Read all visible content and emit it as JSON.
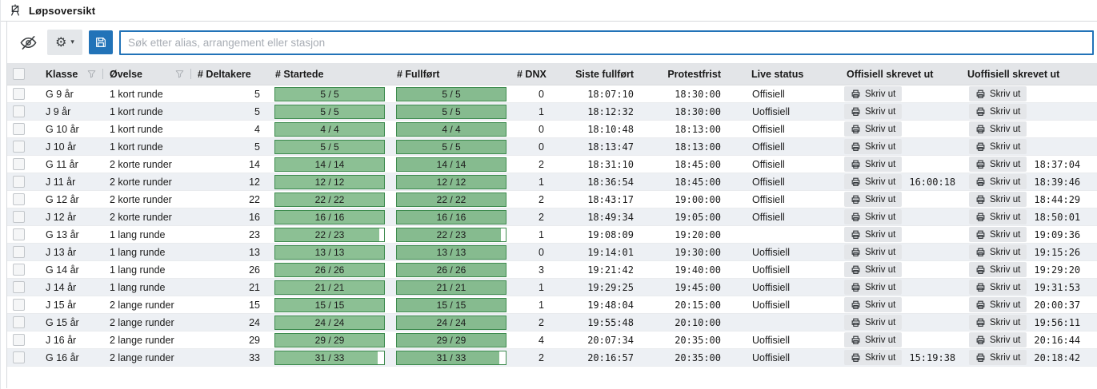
{
  "window": {
    "title": "Løpsoversikt"
  },
  "toolbar": {
    "search": {
      "placeholder": "Søk etter alias, arrangement eller stasjon",
      "value": ""
    },
    "accent_blue": "#2273b8"
  },
  "table": {
    "columns": {
      "klasse": "Klasse",
      "ovelse": "Øvelse",
      "deltakere": "# Deltakere",
      "startede": "# Startede",
      "fullfort": "# Fullført",
      "dnx": "# DNX",
      "siste_fullfort": "Siste fullført",
      "protestfrist": "Protestfrist",
      "live_status": "Live status",
      "offisiell_skrevet_ut": "Offisiell skrevet ut",
      "uoffisiell_skrevet_ut": "Uoffisiell skrevet ut"
    },
    "print_button_label": "Skriv ut",
    "bar_colors": {
      "startede_fill": "#8cc094",
      "fullfort_fill": "#86bb8f",
      "border": "#3d8b4e"
    },
    "rows": [
      {
        "klasse": "G 9 år",
        "ovelse": "1 kort runde",
        "deltakere": 5,
        "startede": "5 / 5",
        "startede_pct": 100,
        "fullfort": "5 / 5",
        "fullfort_pct": 100,
        "dnx": 0,
        "siste_fullfort": "18:07:10",
        "protestfrist": "18:30:00",
        "live_status": "Offisiell",
        "offisiell_tid": "",
        "uoffisiell_tid": ""
      },
      {
        "klasse": "J 9 år",
        "ovelse": "1 kort runde",
        "deltakere": 5,
        "startede": "5 / 5",
        "startede_pct": 100,
        "fullfort": "5 / 5",
        "fullfort_pct": 100,
        "dnx": 1,
        "siste_fullfort": "18:12:32",
        "protestfrist": "18:30:00",
        "live_status": "Uoffisiell",
        "offisiell_tid": "",
        "uoffisiell_tid": ""
      },
      {
        "klasse": "G 10 år",
        "ovelse": "1 kort runde",
        "deltakere": 4,
        "startede": "4 / 4",
        "startede_pct": 100,
        "fullfort": "4 / 4",
        "fullfort_pct": 100,
        "dnx": 0,
        "siste_fullfort": "18:10:48",
        "protestfrist": "18:13:00",
        "live_status": "Offisiell",
        "offisiell_tid": "",
        "uoffisiell_tid": ""
      },
      {
        "klasse": "J 10 år",
        "ovelse": "1 kort runde",
        "deltakere": 5,
        "startede": "5 / 5",
        "startede_pct": 100,
        "fullfort": "5 / 5",
        "fullfort_pct": 100,
        "dnx": 0,
        "siste_fullfort": "18:13:47",
        "protestfrist": "18:13:00",
        "live_status": "Offisiell",
        "offisiell_tid": "",
        "uoffisiell_tid": ""
      },
      {
        "klasse": "G 11 år",
        "ovelse": "2 korte runder",
        "deltakere": 14,
        "startede": "14 / 14",
        "startede_pct": 100,
        "fullfort": "14 / 14",
        "fullfort_pct": 100,
        "dnx": 2,
        "siste_fullfort": "18:31:10",
        "protestfrist": "18:45:00",
        "live_status": "Offisiell",
        "offisiell_tid": "",
        "uoffisiell_tid": "18:37:04"
      },
      {
        "klasse": "J 11 år",
        "ovelse": "2 korte runder",
        "deltakere": 12,
        "startede": "12 / 12",
        "startede_pct": 100,
        "fullfort": "12 / 12",
        "fullfort_pct": 100,
        "dnx": 1,
        "siste_fullfort": "18:36:54",
        "protestfrist": "18:45:00",
        "live_status": "Offisiell",
        "offisiell_tid": "16:00:18",
        "uoffisiell_tid": "18:39:46"
      },
      {
        "klasse": "G 12 år",
        "ovelse": "2 korte runder",
        "deltakere": 22,
        "startede": "22 / 22",
        "startede_pct": 100,
        "fullfort": "22 / 22",
        "fullfort_pct": 100,
        "dnx": 2,
        "siste_fullfort": "18:43:17",
        "protestfrist": "19:00:00",
        "live_status": "Offisiell",
        "offisiell_tid": "",
        "uoffisiell_tid": "18:44:29"
      },
      {
        "klasse": "J 12 år",
        "ovelse": "2 korte runder",
        "deltakere": 16,
        "startede": "16 / 16",
        "startede_pct": 100,
        "fullfort": "16 / 16",
        "fullfort_pct": 100,
        "dnx": 2,
        "siste_fullfort": "18:49:34",
        "protestfrist": "19:05:00",
        "live_status": "Offisiell",
        "offisiell_tid": "",
        "uoffisiell_tid": "18:50:01"
      },
      {
        "klasse": "G 13 år",
        "ovelse": "1 lang runde",
        "deltakere": 23,
        "startede": "22 / 23",
        "startede_pct": 95.7,
        "fullfort": "22 / 23",
        "fullfort_pct": 95.7,
        "dnx": 1,
        "siste_fullfort": "19:08:09",
        "protestfrist": "19:20:00",
        "live_status": "",
        "offisiell_tid": "",
        "uoffisiell_tid": "19:09:36"
      },
      {
        "klasse": "J 13 år",
        "ovelse": "1 lang runde",
        "deltakere": 13,
        "startede": "13 / 13",
        "startede_pct": 100,
        "fullfort": "13 / 13",
        "fullfort_pct": 100,
        "dnx": 0,
        "siste_fullfort": "19:14:01",
        "protestfrist": "19:30:00",
        "live_status": "Uoffisiell",
        "offisiell_tid": "",
        "uoffisiell_tid": "19:15:26"
      },
      {
        "klasse": "G 14 år",
        "ovelse": "1 lang runde",
        "deltakere": 26,
        "startede": "26 / 26",
        "startede_pct": 100,
        "fullfort": "26 / 26",
        "fullfort_pct": 100,
        "dnx": 3,
        "siste_fullfort": "19:21:42",
        "protestfrist": "19:40:00",
        "live_status": "Uoffisiell",
        "offisiell_tid": "",
        "uoffisiell_tid": "19:29:20"
      },
      {
        "klasse": "J 14 år",
        "ovelse": "1 lang runde",
        "deltakere": 21,
        "startede": "21 / 21",
        "startede_pct": 100,
        "fullfort": "21 / 21",
        "fullfort_pct": 100,
        "dnx": 1,
        "siste_fullfort": "19:29:25",
        "protestfrist": "19:45:00",
        "live_status": "Uoffisiell",
        "offisiell_tid": "",
        "uoffisiell_tid": "19:31:53"
      },
      {
        "klasse": "J 15 år",
        "ovelse": "2 lange runder",
        "deltakere": 15,
        "startede": "15 / 15",
        "startede_pct": 100,
        "fullfort": "15 / 15",
        "fullfort_pct": 100,
        "dnx": 1,
        "siste_fullfort": "19:48:04",
        "protestfrist": "20:15:00",
        "live_status": "Uoffisiell",
        "offisiell_tid": "",
        "uoffisiell_tid": "20:00:37"
      },
      {
        "klasse": "G 15 år",
        "ovelse": "2 lange runder",
        "deltakere": 24,
        "startede": "24 / 24",
        "startede_pct": 100,
        "fullfort": "24 / 24",
        "fullfort_pct": 100,
        "dnx": 2,
        "siste_fullfort": "19:55:48",
        "protestfrist": "20:10:00",
        "live_status": "",
        "offisiell_tid": "",
        "uoffisiell_tid": "19:56:11"
      },
      {
        "klasse": "J 16 år",
        "ovelse": "2 lange runder",
        "deltakere": 29,
        "startede": "29 / 29",
        "startede_pct": 100,
        "fullfort": "29 / 29",
        "fullfort_pct": 100,
        "dnx": 4,
        "siste_fullfort": "20:07:34",
        "protestfrist": "20:35:00",
        "live_status": "Uoffisiell",
        "offisiell_tid": "",
        "uoffisiell_tid": "20:16:44"
      },
      {
        "klasse": "G 16 år",
        "ovelse": "2 lange runder",
        "deltakere": 33,
        "startede": "31 / 33",
        "startede_pct": 93.9,
        "fullfort": "31 / 33",
        "fullfort_pct": 93.9,
        "dnx": 2,
        "siste_fullfort": "20:16:57",
        "protestfrist": "20:35:00",
        "live_status": "Uoffisiell",
        "offisiell_tid": "15:19:38",
        "uoffisiell_tid": "20:18:42"
      }
    ]
  }
}
